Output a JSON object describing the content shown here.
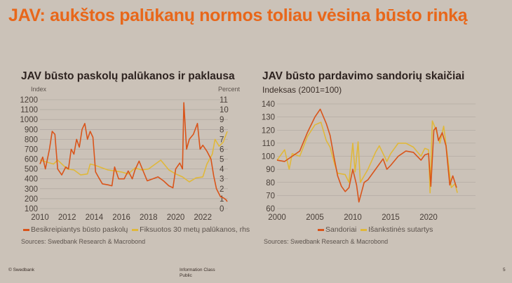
{
  "slide_title": "JAV: aukštos palūkanų normos toliau vėsina būsto rinką",
  "footer": {
    "copyright": "© Swedbank",
    "info_class": "Information Class",
    "info_value": "Public",
    "page": "5"
  },
  "colors": {
    "orange": "#d9541a",
    "yellow": "#e0b83a",
    "grid": "#aaa19a"
  },
  "chart_data": [
    {
      "type": "line",
      "title": "JAV būsto paskolų palūkanos ir paklausa",
      "ylabel": "Index",
      "y2label": "Percent",
      "ylim": [
        100,
        1200
      ],
      "y2lim": [
        0,
        11
      ],
      "xlim": [
        2010,
        2023.85
      ],
      "yticks": [
        "100",
        "200",
        "300",
        "400",
        "500",
        "600",
        "700",
        "800",
        "900",
        "1000",
        "1100",
        "1200"
      ],
      "y2ticks": [
        "0",
        "1",
        "2",
        "3",
        "4",
        "5",
        "6",
        "7",
        "8",
        "9",
        "10",
        "11"
      ],
      "xticks": [
        "2010",
        "2012",
        "2014",
        "2016",
        "2018",
        "2020",
        "2022"
      ],
      "source": "Sources: Swedbank Research & Macrobond",
      "series": [
        {
          "name": "Besikreipiantys būsto paskolų",
          "color": "orange",
          "axis": "left",
          "x": [
            2010,
            2010.2,
            2010.4,
            2010.7,
            2010.9,
            2011.1,
            2011.3,
            2011.6,
            2011.9,
            2012.1,
            2012.3,
            2012.5,
            2012.7,
            2012.9,
            2013.1,
            2013.3,
            2013.5,
            2013.7,
            2013.9,
            2014.1,
            2014.3,
            2014.6,
            2015,
            2015.3,
            2015.5,
            2015.8,
            2016.2,
            2016.5,
            2016.8,
            2017,
            2017.3,
            2017.6,
            2017.9,
            2018.3,
            2018.7,
            2019.1,
            2019.5,
            2019.8,
            2020,
            2020.3,
            2020.5,
            2020.6,
            2020.8,
            2021,
            2021.3,
            2021.6,
            2021.8,
            2022,
            2022.3,
            2022.6,
            2022.8,
            2023,
            2023.3,
            2023.5,
            2023.7,
            2023.8
          ],
          "values": [
            550,
            620,
            500,
            700,
            880,
            850,
            500,
            440,
            520,
            500,
            700,
            650,
            800,
            720,
            900,
            960,
            800,
            880,
            820,
            470,
            420,
            350,
            340,
            330,
            520,
            400,
            400,
            480,
            400,
            490,
            580,
            480,
            380,
            400,
            420,
            380,
            330,
            310,
            500,
            560,
            500,
            1170,
            700,
            800,
            850,
            960,
            700,
            740,
            680,
            600,
            430,
            300,
            220,
            210,
            190,
            170
          ]
        },
        {
          "name": "Fiksuotos 30 metų palūkanos, rhs",
          "color": "yellow",
          "axis": "right",
          "x": [
            2010,
            2011,
            2011.3,
            2012,
            2012.5,
            2013,
            2013.5,
            2013.7,
            2014,
            2015,
            2016,
            2016.5,
            2017,
            2017.5,
            2018,
            2018.9,
            2019.5,
            2020,
            2020.5,
            2021,
            2021.5,
            2022,
            2022.3,
            2022.7,
            2022.9,
            2023.2,
            2023.5,
            2023.8
          ],
          "values": [
            4.9,
            4.5,
            4.9,
            4.0,
            3.9,
            3.4,
            3.5,
            4.5,
            4.4,
            3.9,
            3.7,
            3.5,
            4.1,
            3.9,
            4.0,
            4.9,
            3.9,
            3.5,
            3.2,
            2.7,
            3.1,
            3.2,
            4.5,
            5.5,
            7.0,
            6.3,
            6.7,
            7.8
          ]
        }
      ]
    },
    {
      "type": "line",
      "title": "JAV būsto pardavimo sandorių skaičiai",
      "ylabel": "Indeksas (2001=100)",
      "ylim": [
        60,
        140
      ],
      "xlim": [
        2000,
        2026.2
      ],
      "yticks": [
        "60",
        "70",
        "80",
        "90",
        "100",
        "110",
        "120",
        "130",
        "140"
      ],
      "xticks": [
        "2000",
        "2005",
        "2010",
        "2015",
        "2020"
      ],
      "source": "Sources: Swedbank Research & Macrobond",
      "series": [
        {
          "name": "Sandoriai",
          "color": "orange",
          "axis": "left",
          "x": [
            2000,
            2001,
            2002,
            2003,
            2004,
            2005,
            2005.7,
            2006.5,
            2007,
            2007.5,
            2008,
            2008.5,
            2009,
            2009.5,
            2010,
            2010.5,
            2010.8,
            2011.5,
            2012,
            2013,
            2014,
            2014.5,
            2015,
            2016,
            2016.5,
            2017,
            2018,
            2019,
            2019.5,
            2020,
            2020.3,
            2020.7,
            2021,
            2021.3,
            2021.8,
            2022.3,
            2022.8,
            2023.2,
            2023.7
          ],
          "values": [
            97,
            96,
            100,
            104,
            118,
            130,
            136,
            125,
            116,
            100,
            85,
            77,
            73,
            76,
            90,
            78,
            65,
            80,
            82,
            90,
            98,
            90,
            93,
            100,
            102,
            104,
            103,
            97,
            101,
            102,
            77,
            120,
            122,
            112,
            118,
            108,
            78,
            85,
            76
          ]
        },
        {
          "name": "Išankstinės sutartys",
          "color": "yellow",
          "axis": "left",
          "x": [
            2000,
            2001,
            2001.6,
            2002,
            2003,
            2004,
            2005,
            2005.8,
            2006.5,
            2007,
            2007.6,
            2008,
            2009,
            2009.5,
            2010,
            2010.3,
            2010.7,
            2011,
            2011.5,
            2012,
            2013,
            2013.5,
            2014.5,
            2015,
            2016,
            2017,
            2018,
            2019,
            2019.5,
            2020,
            2020.2,
            2020.5,
            2021,
            2021.5,
            2022,
            2022.5,
            2023,
            2023.5,
            2023.8
          ],
          "values": [
            97,
            105,
            90,
            102,
            100,
            115,
            124,
            126,
            112,
            107,
            94,
            87,
            86,
            80,
            110,
            88,
            111,
            80,
            85,
            90,
            103,
            108,
            96,
            102,
            110,
            110,
            107,
            100,
            106,
            105,
            72,
            127,
            120,
            110,
            123,
            100,
            76,
            79,
            72
          ]
        }
      ]
    }
  ]
}
